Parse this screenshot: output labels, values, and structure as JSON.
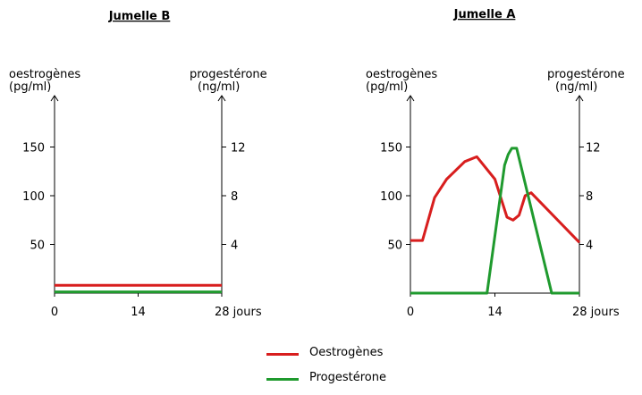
{
  "colors": {
    "oestrogenes": "#d81e1e",
    "progesterone": "#1f9a2e",
    "axis": "#000000"
  },
  "chart_data": [
    {
      "type": "line",
      "title": "Jumelle B",
      "xlabel": "jours",
      "y_left_label": [
        "oestrogènes",
        "(pg/ml)"
      ],
      "y_right_label": [
        "progestérone",
        "(ng/ml)"
      ],
      "x_ticks": [
        "0",
        "14",
        "28 jours"
      ],
      "x_tick_values": [
        0,
        14,
        28
      ],
      "xlim": [
        0,
        28
      ],
      "y_left_ticks": [
        "50",
        "100",
        "150"
      ],
      "y_left_tick_values": [
        50,
        100,
        150
      ],
      "ylim_left": [
        0,
        200
      ],
      "y_right_ticks": [
        "4",
        "8",
        "12"
      ],
      "y_right_tick_values": [
        4,
        8,
        12
      ],
      "ylim_right": [
        0,
        16
      ],
      "grid": false,
      "series": [
        {
          "name": "Oestrogènes",
          "axis": "left",
          "x": [
            0,
            28
          ],
          "y": [
            8,
            8
          ]
        },
        {
          "name": "Progestérone",
          "axis": "right",
          "x": [
            0,
            28
          ],
          "y": [
            0.1,
            0.1
          ]
        }
      ]
    },
    {
      "type": "line",
      "title": "Jumelle A",
      "xlabel": "jours",
      "y_left_label": [
        "oestrogènes",
        "(pg/ml)"
      ],
      "y_right_label": [
        "progestérone",
        "(ng/ml)"
      ],
      "x_ticks": [
        "0",
        "14",
        "28 jours"
      ],
      "x_tick_values": [
        0,
        14,
        28
      ],
      "xlim": [
        0,
        28
      ],
      "y_left_ticks": [
        "50",
        "100",
        "150"
      ],
      "y_left_tick_values": [
        50,
        100,
        150
      ],
      "ylim_left": [
        0,
        200
      ],
      "y_right_ticks": [
        "4",
        "8",
        "12"
      ],
      "y_right_tick_values": [
        4,
        8,
        12
      ],
      "ylim_right": [
        0,
        16
      ],
      "grid": false,
      "series": [
        {
          "name": "Oestrogènes",
          "axis": "left",
          "x": [
            0,
            2,
            4,
            6,
            9,
            11,
            14,
            16,
            17,
            18,
            19,
            20,
            28
          ],
          "y": [
            54,
            54,
            98,
            117,
            135,
            140,
            117,
            78,
            75,
            80,
            100,
            103,
            52
          ]
        },
        {
          "name": "Progestérone",
          "axis": "right",
          "x": [
            0,
            12.7,
            15.6,
            16.2,
            16.8,
            17.6,
            23.4,
            24.9,
            28
          ],
          "y": [
            0,
            0,
            10.5,
            11.4,
            11.9,
            11.9,
            0.0,
            0,
            0
          ]
        }
      ]
    }
  ],
  "legend": [
    {
      "label": "Oestrogènes",
      "color_key": "oestrogenes"
    },
    {
      "label": "Progestérone",
      "color_key": "progesterone"
    }
  ]
}
